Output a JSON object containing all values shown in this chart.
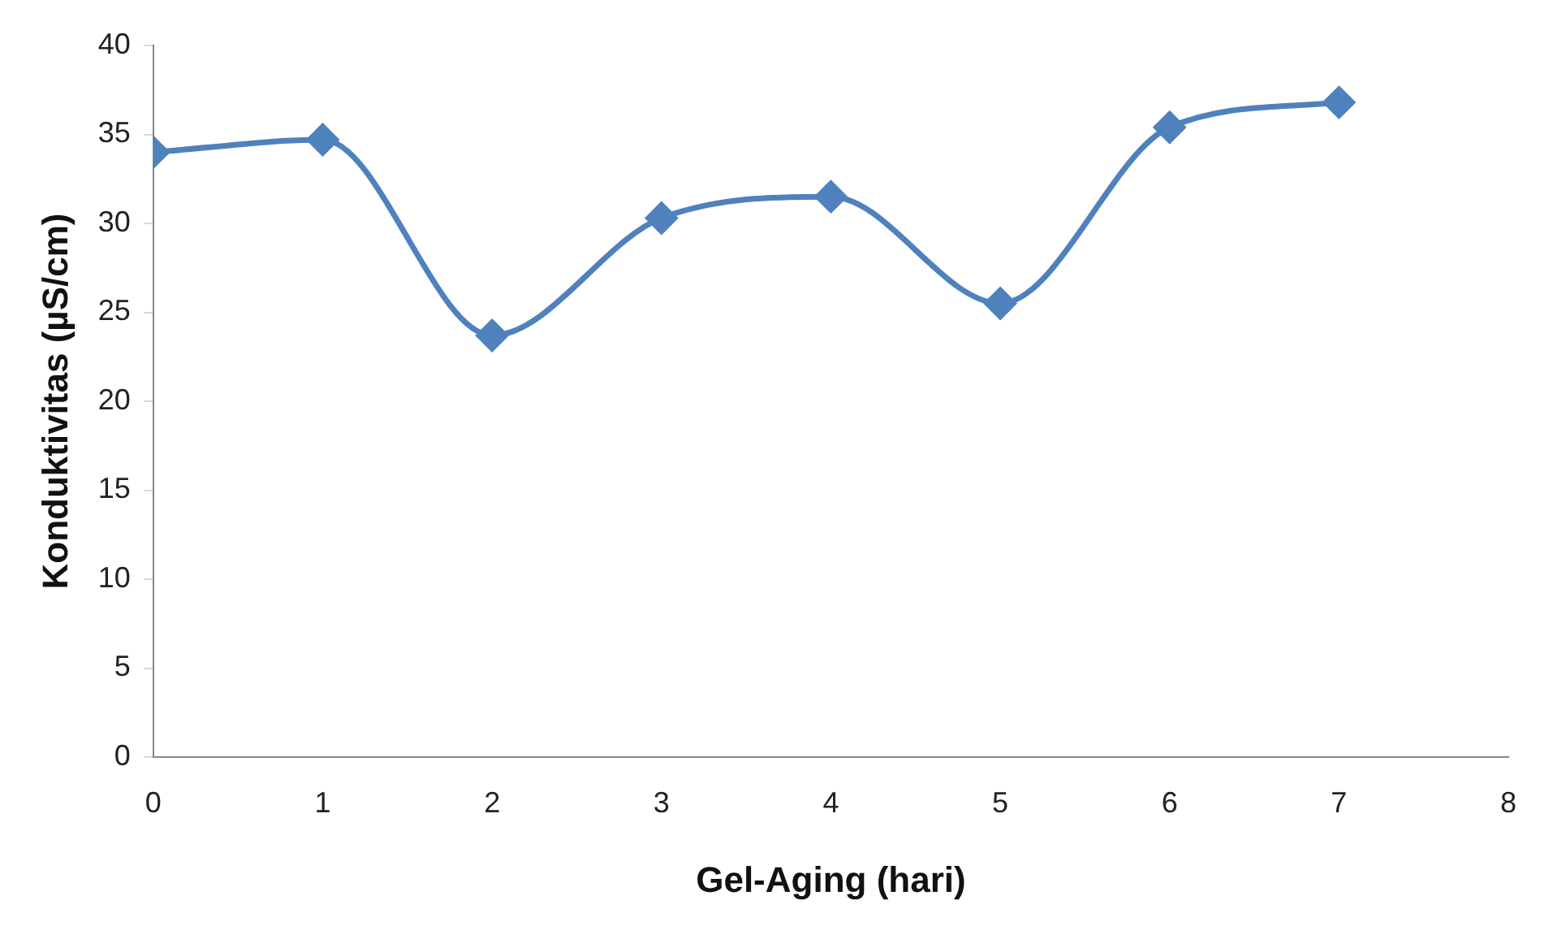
{
  "chart_data": {
    "type": "line",
    "xlabel": "Gel-Aging (hari)",
    "ylabel": "Konduktivitas (µS/cm)",
    "x": [
      0,
      1,
      2,
      3,
      4,
      5,
      6,
      7
    ],
    "series": [
      {
        "color": "#4f81bd",
        "values": [
          34,
          34.7,
          23.7,
          30.3,
          31.5,
          25.5,
          35.4,
          36.8
        ]
      }
    ],
    "xlim": [
      0,
      8
    ],
    "xticks": [
      0,
      1,
      2,
      3,
      4,
      5,
      6,
      7,
      8
    ],
    "ylim": [
      0,
      40
    ],
    "yticks": [
      0,
      5,
      10,
      15,
      20,
      25,
      30,
      35,
      40
    ],
    "grid": false,
    "legend": false,
    "marker": "diamond",
    "line_style": "solid"
  }
}
